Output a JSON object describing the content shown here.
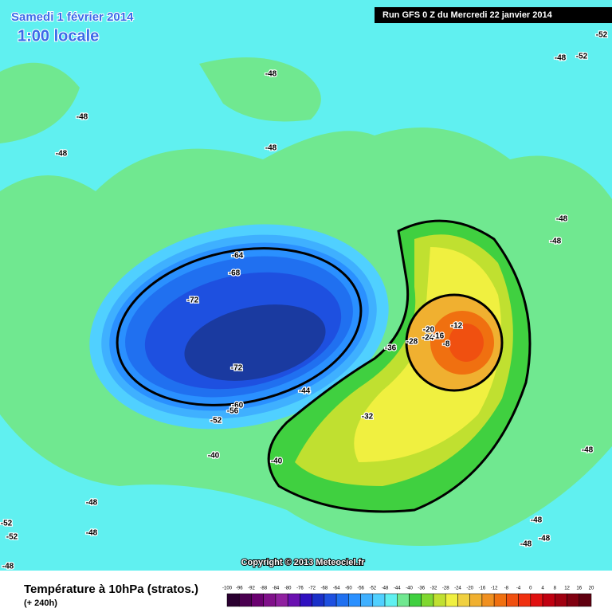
{
  "header": {
    "date": "Samedi 1 février 2014",
    "time": "1:00 locale",
    "run": "Run GFS 0 Z du Mercredi 22 janvier 2014"
  },
  "copyright": "Copyright © 2013 Meteociel.fr",
  "footer": {
    "title": "Température à 10hPa (stratos.)",
    "lead": "(+ 240h)"
  },
  "contour_labels": [
    -52,
    -48,
    -48,
    -48,
    -48,
    -48,
    -52,
    -48,
    -48,
    -64,
    -68,
    -72,
    -72,
    -60,
    -56,
    -52,
    -44,
    -36,
    -28,
    -24,
    -20,
    -16,
    -12,
    -8,
    -32,
    -40,
    -40,
    -48,
    -48,
    -52,
    -52,
    -48,
    -48,
    -48,
    -48,
    -48
  ],
  "legend": {
    "labels": [
      -100,
      -96,
      -92,
      -88,
      -84,
      -80,
      -76,
      -72,
      -68,
      -64,
      -60,
      -56,
      -52,
      -48,
      -44,
      -40,
      -36,
      -32,
      -28,
      -24,
      -20,
      -16,
      -12,
      -8,
      -4,
      0,
      4,
      8,
      12,
      16,
      20
    ],
    "colors": [
      "#2a0030",
      "#4a0050",
      "#6a0070",
      "#80108a",
      "#9020a0",
      "#6a10b0",
      "#3010c0",
      "#1a30c8",
      "#1e50e0",
      "#2070f0",
      "#2a90ff",
      "#3fb0ff",
      "#50d0ff",
      "#60f0f0",
      "#70e890",
      "#40d040",
      "#80d830",
      "#c0e030",
      "#f0f040",
      "#f0d040",
      "#f0b030",
      "#f09020",
      "#f07010",
      "#f05010",
      "#f03010",
      "#e01010",
      "#c00010",
      "#a00010",
      "#800010",
      "#600010"
    ]
  }
}
